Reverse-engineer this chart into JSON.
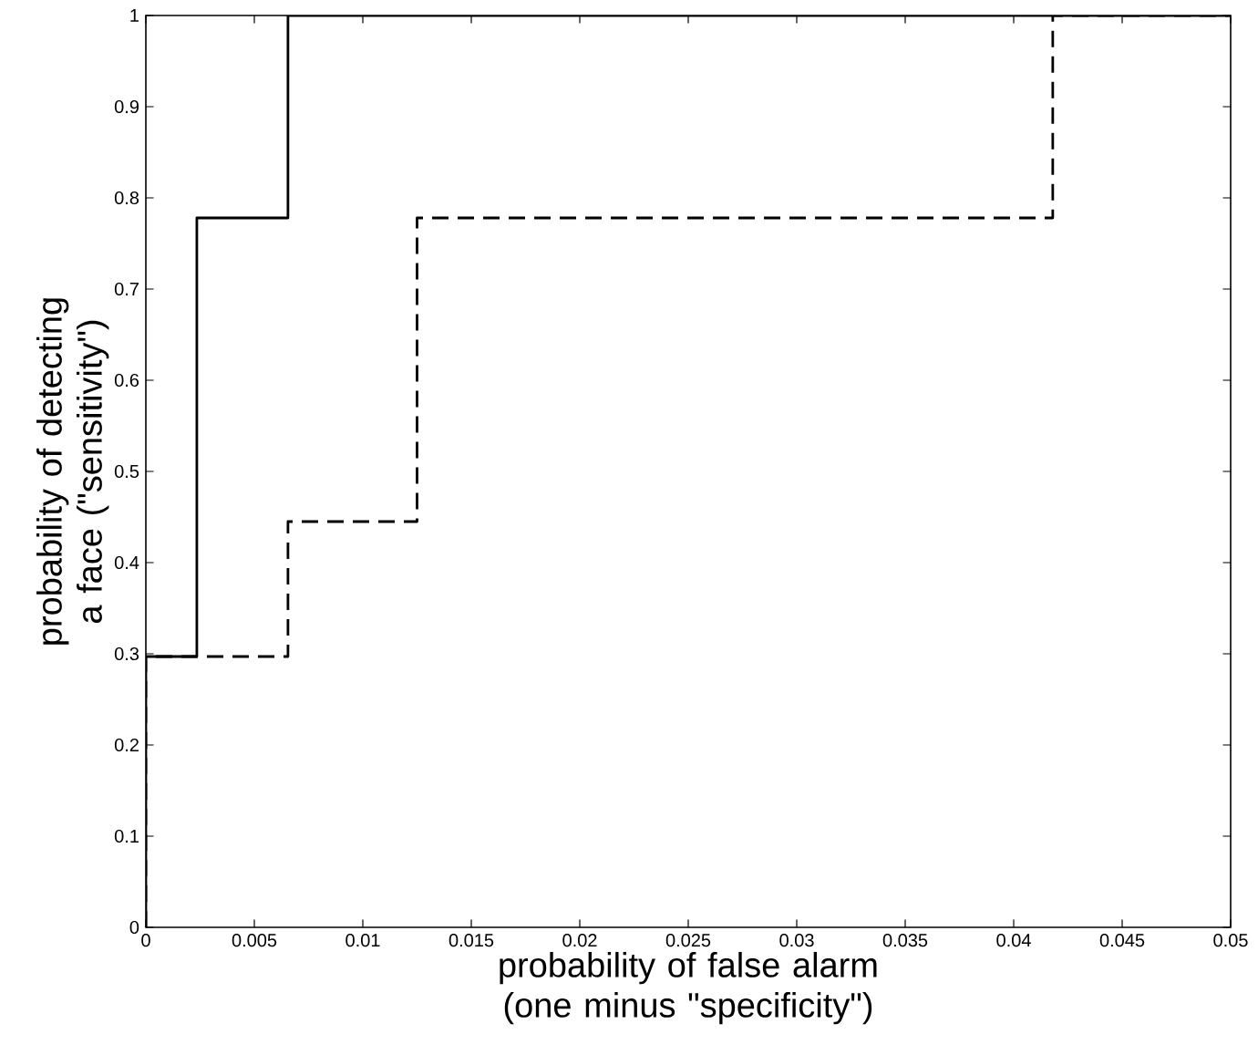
{
  "chart_data": {
    "type": "step",
    "xlabel": "probability of false alarm (one minus \"specificity\")",
    "ylabel": "probability of detecting a face (\"sensitivity\")",
    "series": [
      {
        "color": "#000000",
        "line_style": "solid",
        "x": [
          0,
          0,
          0.00235,
          0.00655,
          0.05
        ],
        "values": [
          0,
          0.297,
          0.778,
          1,
          1
        ]
      },
      {
        "color": "#000000",
        "line_style": "dashed",
        "x": [
          0,
          0,
          0.00655,
          0.0125,
          0.0418,
          0.05
        ],
        "values": [
          0,
          0.297,
          0.445,
          0.778,
          1,
          1
        ]
      }
    ],
    "xlim": [
      0,
      0.05
    ],
    "ylim": [
      0,
      1
    ],
    "xticks": [
      0,
      0.005,
      0.01,
      0.015,
      0.02,
      0.025,
      0.03,
      0.035,
      0.04,
      0.045,
      0.05
    ],
    "yticks": [
      0,
      0.1,
      0.2,
      0.3,
      0.4,
      0.5,
      0.6,
      0.7,
      0.8,
      0.9,
      1
    ],
    "grid": false
  }
}
